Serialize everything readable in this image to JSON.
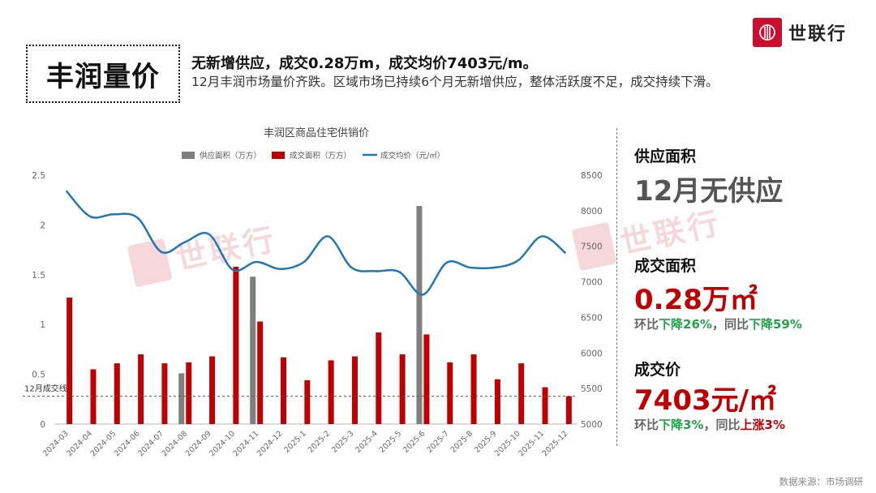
{
  "title": "丰润量价",
  "headline": "无新增供应，成交0.28万m，成交均价7403元/m。",
  "subline": "12月丰润市场量价齐跌。区域市场已持续6个月无新增供应，整体活跃度不足，成交持续下滑。",
  "logo_text": "世联行",
  "watermark_text": "世联行",
  "icons": {
    "logo": "brand-logo-icon"
  },
  "colors": {
    "supply": "#7f7f7f",
    "deal": "#c00000",
    "price": "#1f77b4",
    "brand": "#c8102e",
    "down": "#22a34a",
    "up": "#c00000"
  },
  "panel": {
    "supply": {
      "label": "供应面积",
      "value": "12月无供应"
    },
    "deal_area": {
      "label": "成交面积",
      "value": "0.28万㎡",
      "mom_prefix": "环比",
      "mom_text": "下降26%",
      "sep": "，",
      "yoy_prefix": "同比",
      "yoy_text": "下降59%"
    },
    "deal_price": {
      "label": "成交价",
      "value": "7403元/㎡",
      "mom_prefix": "环比",
      "mom_text": "下降3%",
      "sep": "，",
      "yoy_prefix": "同比",
      "yoy_text": "上涨3%"
    }
  },
  "source": "数据来源：市场调研",
  "chart_data": {
    "type": "bar+line",
    "title": "丰润区商品住宅供销价",
    "categories": [
      "2024-03",
      "2024-04",
      "2024-05",
      "2024-06",
      "2024-07",
      "2024-08",
      "2024-09",
      "2024-10",
      "2024-11",
      "2024-12",
      "2025-1",
      "2025-2",
      "2025-3",
      "2025-4",
      "2025-5",
      "2025-6",
      "2025-7",
      "2025-8",
      "2025-9",
      "2025-10",
      "2025-11",
      "2025-12"
    ],
    "series": [
      {
        "name": "供应面积（万方）",
        "type": "bar",
        "axis": "left",
        "values": [
          0,
          0,
          0,
          0,
          0,
          0.51,
          0,
          0,
          1.48,
          0,
          0,
          0,
          0,
          0,
          0,
          2.19,
          0,
          0,
          0,
          0,
          0,
          0
        ]
      },
      {
        "name": "成交面积（万方）",
        "type": "bar",
        "axis": "left",
        "values": [
          1.27,
          0.55,
          0.61,
          0.7,
          0.61,
          0.62,
          0.68,
          1.58,
          1.03,
          0.67,
          0.44,
          0.64,
          0.68,
          0.92,
          0.7,
          0.9,
          0.62,
          0.7,
          0.45,
          0.61,
          0.37,
          0.28
        ]
      },
      {
        "name": "成交均价（元/㎡）",
        "type": "line",
        "axis": "right",
        "values": [
          8280,
          7920,
          7950,
          7900,
          7420,
          7560,
          7670,
          7170,
          7280,
          7180,
          7280,
          7640,
          7200,
          7150,
          7140,
          6820,
          7270,
          7200,
          7200,
          7300,
          7640,
          7403
        ]
      }
    ],
    "y_left": {
      "min": 0,
      "max": 2.5,
      "ticks": [
        "0",
        "0.5",
        "1",
        "1.5",
        "2",
        "2.5"
      ]
    },
    "y_right": {
      "min": 5000,
      "max": 8500,
      "ticks": [
        "5000",
        "5500",
        "6000",
        "6500",
        "7000",
        "7500",
        "8000",
        "8500"
      ]
    },
    "reference_line": {
      "label": "12月成交线",
      "value": 0.28
    },
    "grid": false,
    "legend": "top"
  }
}
